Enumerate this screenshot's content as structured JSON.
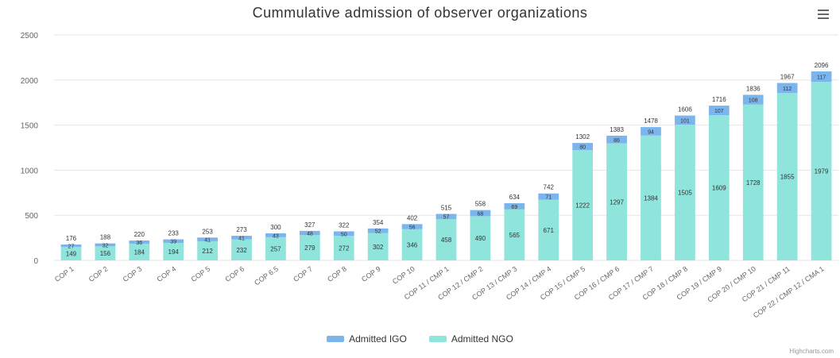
{
  "menu": {
    "icon": "hamburger-menu-icon"
  },
  "colors": {
    "igo": "#7cb5ec",
    "ngo": "#8fe5dc",
    "grid": "#e6e6e6",
    "axis_text": "#666666",
    "label": "#333333"
  },
  "legend": {
    "items": [
      {
        "key": "igo",
        "label": "Admitted IGO"
      },
      {
        "key": "ngo",
        "label": "Admitted NGO"
      }
    ]
  },
  "credit": "Highcharts.com",
  "chart_data": {
    "type": "bar",
    "stacked": true,
    "title": "Cummulative admission of observer organizations",
    "categories": [
      "COP 1",
      "COP 2",
      "COP 3",
      "COP 4",
      "COP 5",
      "COP 6",
      "COP 6.5",
      "COP 7",
      "COP 8",
      "COP 9",
      "COP 10",
      "COP 11 / CMP 1",
      "COP 12 / CMP 2",
      "COP 13 / CMP 3",
      "COP 14 / CMP 4",
      "COP 15 / CMP 5",
      "COP 16 / CMP 6",
      "COP 17 / CMP 7",
      "COP 18 / CMP 8",
      "COP 19 / CMP 9",
      "COP 20 / CMP 10",
      "COP 21 / CMP 11",
      "COP 22 / CMP 12 / CMA 1"
    ],
    "series": [
      {
        "name": "Admitted IGO",
        "key": "igo",
        "values": [
          27,
          32,
          36,
          39,
          41,
          41,
          43,
          48,
          50,
          52,
          56,
          57,
          68,
          69,
          71,
          80,
          86,
          94,
          101,
          107,
          108,
          112,
          117
        ]
      },
      {
        "name": "Admitted NGO",
        "key": "ngo",
        "values": [
          149,
          156,
          184,
          194,
          212,
          232,
          257,
          279,
          272,
          302,
          346,
          458,
          490,
          565,
          671,
          1222,
          1297,
          1384,
          1505,
          1609,
          1728,
          1855,
          1979
        ]
      }
    ],
    "totals": [
      176,
      188,
      220,
      233,
      253,
      273,
      300,
      327,
      322,
      354,
      402,
      515,
      558,
      634,
      742,
      1302,
      1383,
      1478,
      1606,
      1716,
      1836,
      1967,
      2096
    ],
    "ylim": [
      0,
      2500
    ],
    "yticks": [
      0,
      500,
      1000,
      1500,
      2000,
      2500
    ],
    "grid": true,
    "legend_position": "bottom-center"
  }
}
